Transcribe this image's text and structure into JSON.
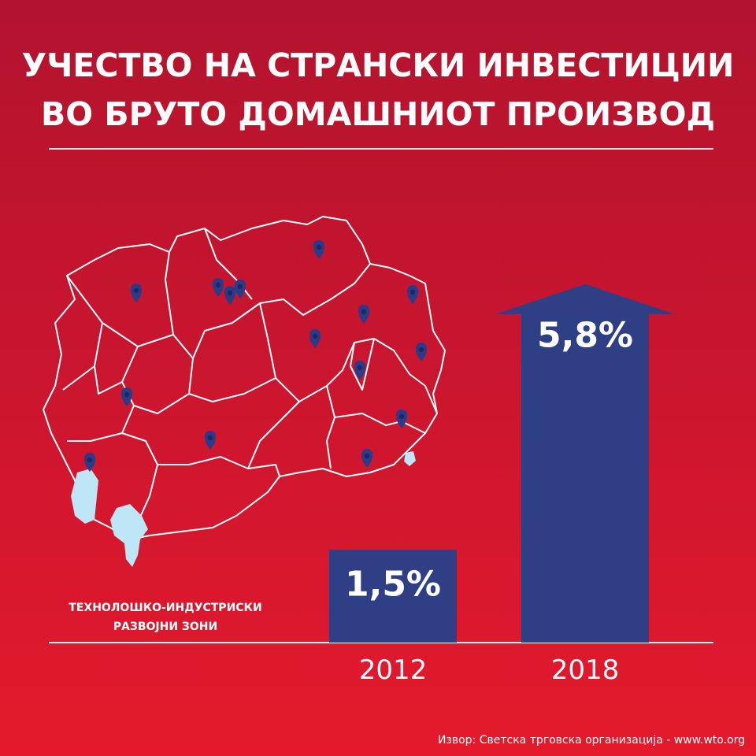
{
  "header": {
    "title_line1": "УЧЕСТВО НА СТРАНСКИ ИНВЕСТИЦИИ",
    "title_line2": "ВО БРУТО ДОМАШНИОТ ПРОИЗВОД"
  },
  "map": {
    "legend_line1": "ТЕХНОЛОШКО-ИНДУСТРИСКИ",
    "legend_line2": "РАЗВОЈНИ ЗОНИ",
    "marker_icon": "location-pin-icon",
    "marker_color": "#2b3b87",
    "lake_color": "#bfe6f7"
  },
  "chart_data": {
    "type": "bar",
    "categories": [
      "2012",
      "2018"
    ],
    "values": [
      1.5,
      5.8
    ],
    "data_labels": [
      "1,5%",
      "5,8%"
    ],
    "ylim": [
      0,
      6
    ],
    "bar_color": "#2f3f86",
    "last_bar_shape": "arrow-up"
  },
  "footer": {
    "source": "Извор: Светска трговска организација - www.wto.org"
  }
}
